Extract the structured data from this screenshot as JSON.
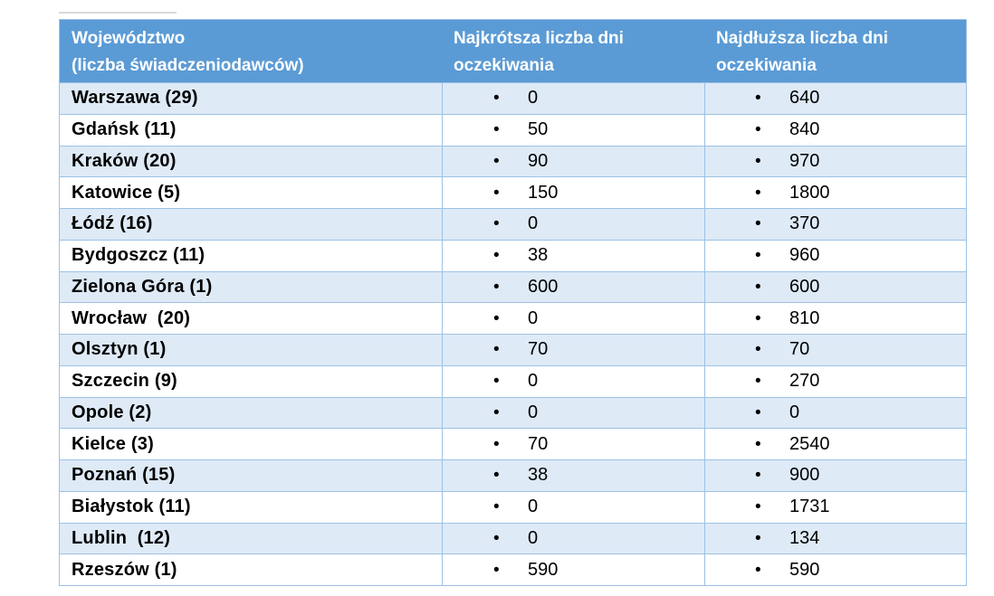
{
  "table": {
    "bullet_icon": "•",
    "columns": [
      {
        "label_line1": "Województwo",
        "label_line2": "(liczba świadczeniodawców)"
      },
      {
        "label_line1": "Najkrótsza liczba dni",
        "label_line2": "oczekiwania"
      },
      {
        "label_line1": "Najdłuższa liczba dni",
        "label_line2": "oczekiwania"
      }
    ],
    "rows": [
      {
        "city": "Warszawa (29)",
        "min_days": "0",
        "max_days": "640"
      },
      {
        "city": "Gdańsk (11)",
        "min_days": "50",
        "max_days": "840"
      },
      {
        "city": "Kraków (20)",
        "min_days": "90",
        "max_days": "970"
      },
      {
        "city": "Katowice (5)",
        "min_days": "150",
        "max_days": "1800"
      },
      {
        "city": "Łódź (16)",
        "min_days": "0",
        "max_days": "370"
      },
      {
        "city": "Bydgoszcz (11)",
        "min_days": "38",
        "max_days": "960"
      },
      {
        "city": "Zielona Góra (1)",
        "min_days": "600",
        "max_days": "600"
      },
      {
        "city": "Wrocław  (20)",
        "min_days": "0",
        "max_days": "810"
      },
      {
        "city": "Olsztyn (1)",
        "min_days": "70",
        "max_days": "70"
      },
      {
        "city": "Szczecin (9)",
        "min_days": "0",
        "max_days": "270"
      },
      {
        "city": "Opole (2)",
        "min_days": "0",
        "max_days": "0"
      },
      {
        "city": "Kielce (3)",
        "min_days": "70",
        "max_days": "2540"
      },
      {
        "city": "Poznań (15)",
        "min_days": "38",
        "max_days": "900"
      },
      {
        "city": "Białystok (11)",
        "min_days": "0",
        "max_days": "1731"
      },
      {
        "city": "Lublin  (12)",
        "min_days": "0",
        "max_days": "134"
      },
      {
        "city": "Rzeszów (1)",
        "min_days": "590",
        "max_days": "590"
      }
    ]
  },
  "colors": {
    "header_bg": "#5B9BD5",
    "header_text": "#FFFFFF",
    "band_row_bg": "#DEEAF6",
    "plain_row_bg": "#FFFFFF",
    "border": "#9CC2E5",
    "body_text": "#000000"
  }
}
